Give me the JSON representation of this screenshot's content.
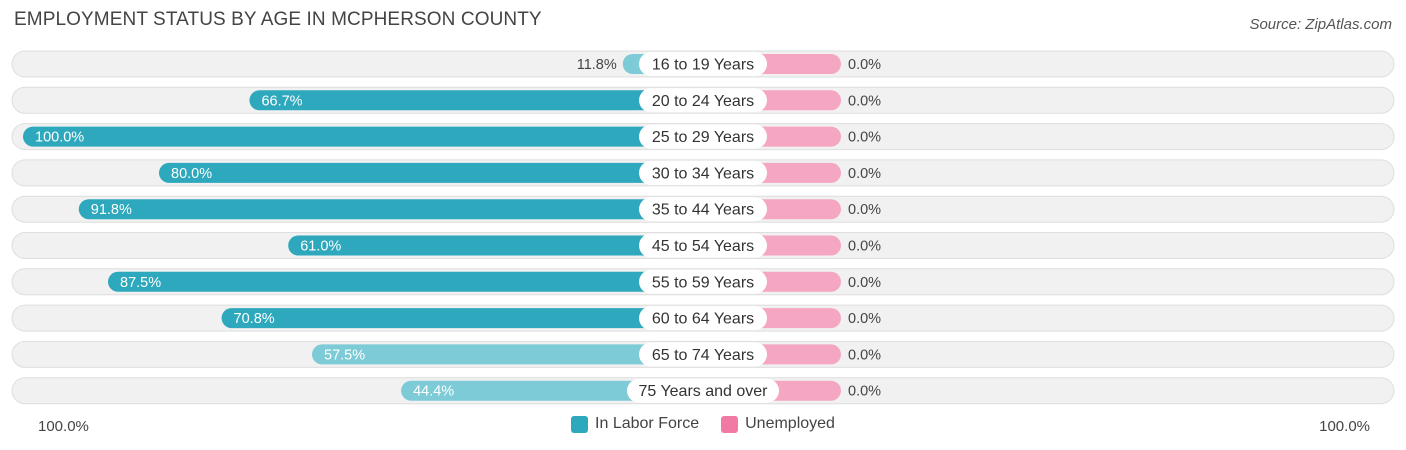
{
  "title": "EMPLOYMENT STATUS BY AGE IN MCPHERSON COUNTY",
  "source": "Source: ZipAtlas.com",
  "colors": {
    "labor_strong": "#2ea8bc",
    "labor_light": "#7ccbd6",
    "unemployed": "#f4a6c2",
    "unemployed_legend": "#f07aa3",
    "row_bg": "#f1f1f1",
    "row_border": "#dedede"
  },
  "chart_data": {
    "type": "bar",
    "orientation": "horizontal-diverging",
    "title": "EMPLOYMENT STATUS BY AGE IN MCPHERSON COUNTY",
    "categories": [
      "16 to 19 Years",
      "20 to 24 Years",
      "25 to 29 Years",
      "30 to 34 Years",
      "35 to 44 Years",
      "45 to 54 Years",
      "55 to 59 Years",
      "60 to 64 Years",
      "65 to 74 Years",
      "75 Years and over"
    ],
    "series": [
      {
        "name": "In Labor Force",
        "values": [
          11.8,
          66.7,
          100.0,
          80.0,
          91.8,
          61.0,
          87.5,
          70.8,
          57.5,
          44.4
        ],
        "labels": [
          "11.8%",
          "66.7%",
          "100.0%",
          "80.0%",
          "91.8%",
          "61.0%",
          "87.5%",
          "70.8%",
          "57.5%",
          "44.4%"
        ]
      },
      {
        "name": "Unemployed",
        "values": [
          0.0,
          0.0,
          0.0,
          0.0,
          0.0,
          0.0,
          0.0,
          0.0,
          0.0,
          0.0
        ],
        "labels": [
          "0.0%",
          "0.0%",
          "0.0%",
          "0.0%",
          "0.0%",
          "0.0%",
          "0.0%",
          "0.0%",
          "0.0%",
          "0.0%"
        ]
      }
    ],
    "xlim": [
      -100,
      100
    ],
    "axis_left_label": "100.0%",
    "axis_right_label": "100.0%",
    "legend_position": "bottom-center"
  }
}
